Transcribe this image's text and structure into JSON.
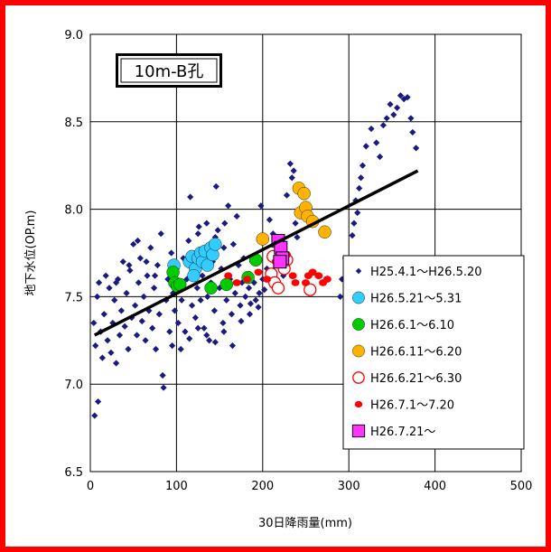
{
  "chart_data": {
    "type": "scatter",
    "title": "10m-B孔",
    "xlabel": "30日降雨量(mm)",
    "ylabel": "地下水位(OP.m)",
    "xlim": [
      0,
      500
    ],
    "ylim": [
      6.5,
      9.0
    ],
    "xticks": [
      "0",
      "100",
      "200",
      "300",
      "400",
      "500"
    ],
    "yticks": [
      "6.5",
      "7.0",
      "7.5",
      "8.0",
      "8.5",
      "9.0"
    ],
    "grid": true,
    "legend_position": "bottom-right",
    "trendline": {
      "x": [
        5,
        380
      ],
      "y": [
        7.28,
        8.22
      ],
      "color": "#000000"
    },
    "series": [
      {
        "name": "H25.4.1～H26.5.20",
        "marker": "diamond",
        "color": "#1a1a80",
        "points": [
          [
            5,
            6.82
          ],
          [
            9,
            6.9
          ],
          [
            4,
            7.35
          ],
          [
            6,
            7.22
          ],
          [
            8,
            7.5
          ],
          [
            10,
            7.58
          ],
          [
            12,
            7.3
          ],
          [
            14,
            7.15
          ],
          [
            16,
            7.4
          ],
          [
            18,
            7.62
          ],
          [
            20,
            7.25
          ],
          [
            22,
            7.55
          ],
          [
            24,
            7.18
          ],
          [
            26,
            7.35
          ],
          [
            28,
            7.48
          ],
          [
            30,
            7.12
          ],
          [
            32,
            7.6
          ],
          [
            34,
            7.28
          ],
          [
            36,
            7.42
          ],
          [
            38,
            7.7
          ],
          [
            40,
            7.33
          ],
          [
            42,
            7.52
          ],
          [
            44,
            7.2
          ],
          [
            46,
            7.65
          ],
          [
            48,
            7.38
          ],
          [
            50,
            7.8
          ],
          [
            52,
            7.45
          ],
          [
            54,
            7.28
          ],
          [
            56,
            7.58
          ],
          [
            58,
            7.72
          ],
          [
            60,
            7.36
          ],
          [
            62,
            7.5
          ],
          [
            64,
            7.25
          ],
          [
            66,
            7.62
          ],
          [
            68,
            7.42
          ],
          [
            70,
            7.78
          ],
          [
            72,
            7.32
          ],
          [
            74,
            7.55
          ],
          [
            76,
            7.2
          ],
          [
            78,
            7.68
          ],
          [
            80,
            7.4
          ],
          [
            82,
            7.86
          ],
          [
            84,
            7.05
          ],
          [
            85,
            6.98
          ],
          [
            88,
            7.48
          ],
          [
            90,
            7.6
          ],
          [
            92,
            7.3
          ],
          [
            94,
            7.75
          ],
          [
            96,
            7.52
          ],
          [
            98,
            7.42
          ],
          [
            100,
            7.66
          ],
          [
            102,
            7.35
          ],
          [
            104,
            7.55
          ],
          [
            106,
            7.48
          ],
          [
            108,
            7.72
          ],
          [
            110,
            7.3
          ],
          [
            112,
            7.6
          ],
          [
            114,
            7.82
          ],
          [
            116,
            8.07
          ],
          [
            118,
            7.45
          ],
          [
            120,
            7.68
          ],
          [
            122,
            7.38
          ],
          [
            124,
            7.55
          ],
          [
            126,
            7.9
          ],
          [
            128,
            7.48
          ],
          [
            130,
            7.62
          ],
          [
            132,
            7.32
          ],
          [
            134,
            7.76
          ],
          [
            136,
            7.5
          ],
          [
            138,
            7.25
          ],
          [
            140,
            7.58
          ],
          [
            142,
            7.7
          ],
          [
            144,
            7.42
          ],
          [
            146,
            8.13
          ],
          [
            148,
            7.88
          ],
          [
            150,
            7.55
          ],
          [
            152,
            7.66
          ],
          [
            154,
            7.35
          ],
          [
            156,
            7.92
          ],
          [
            158,
            7.48
          ],
          [
            160,
            8.02
          ],
          [
            162,
            7.6
          ],
          [
            164,
            7.4
          ],
          [
            166,
            7.8
          ],
          [
            168,
            7.52
          ],
          [
            170,
            7.96
          ],
          [
            172,
            7.68
          ],
          [
            174,
            7.45
          ],
          [
            176,
            7.58
          ],
          [
            178,
            7.72
          ],
          [
            180,
            7.5
          ],
          [
            182,
            7.62
          ],
          [
            184,
            7.55
          ],
          [
            186,
            7.46
          ],
          [
            188,
            7.7
          ],
          [
            190,
            7.58
          ],
          [
            192,
            7.48
          ],
          [
            194,
            7.64
          ],
          [
            196,
            7.52
          ],
          [
            198,
            8.02
          ],
          [
            200,
            7.6
          ],
          [
            202,
            7.54
          ],
          [
            205,
            7.66
          ],
          [
            208,
            7.94
          ],
          [
            212,
            7.86
          ],
          [
            216,
            7.6
          ],
          [
            220,
            7.7
          ],
          [
            224,
            7.62
          ],
          [
            228,
            8.08
          ],
          [
            232,
            8.26
          ],
          [
            234,
            8.18
          ],
          [
            236,
            8.22
          ],
          [
            238,
            7.92
          ],
          [
            240,
            7.84
          ],
          [
            290,
            7.5
          ],
          [
            292,
            7.6
          ],
          [
            296,
            7.72
          ],
          [
            300,
            7.62
          ],
          [
            304,
            7.85
          ],
          [
            306,
            7.92
          ],
          [
            308,
            8.05
          ],
          [
            310,
            7.98
          ],
          [
            312,
            8.12
          ],
          [
            314,
            8.18
          ],
          [
            316,
            8.25
          ],
          [
            320,
            8.36
          ],
          [
            326,
            8.46
          ],
          [
            332,
            8.38
          ],
          [
            336,
            8.3
          ],
          [
            340,
            8.48
          ],
          [
            344,
            8.52
          ],
          [
            348,
            8.6
          ],
          [
            352,
            8.54
          ],
          [
            356,
            8.58
          ],
          [
            360,
            8.65
          ],
          [
            364,
            8.63
          ],
          [
            368,
            8.64
          ],
          [
            372,
            8.52
          ],
          [
            374,
            8.44
          ],
          [
            378,
            8.35
          ],
          [
            30,
            7.58
          ],
          [
            45,
            7.68
          ],
          [
            55,
            7.82
          ],
          [
            65,
            7.7
          ],
          [
            75,
            7.62
          ],
          [
            95,
            7.22
          ],
          [
            105,
            7.2
          ],
          [
            115,
            7.26
          ],
          [
            125,
            7.32
          ],
          [
            135,
            7.28
          ],
          [
            145,
            7.24
          ],
          [
            155,
            7.3
          ],
          [
            165,
            7.22
          ],
          [
            175,
            7.36
          ],
          [
            185,
            7.4
          ],
          [
            195,
            7.44
          ],
          [
            125,
            7.86
          ],
          [
            135,
            7.92
          ],
          [
            145,
            7.84
          ],
          [
            155,
            7.78
          ]
        ]
      },
      {
        "name": "H26.5.21～5.31",
        "marker": "circle",
        "color": "#33ccff",
        "points": [
          [
            97,
            7.68
          ],
          [
            115,
            7.7
          ],
          [
            118,
            7.73
          ],
          [
            122,
            7.66
          ],
          [
            125,
            7.72
          ],
          [
            128,
            7.75
          ],
          [
            130,
            7.7
          ],
          [
            133,
            7.76
          ],
          [
            136,
            7.68
          ],
          [
            140,
            7.78
          ],
          [
            142,
            7.74
          ],
          [
            145,
            7.8
          ],
          [
            120,
            7.62
          ]
        ]
      },
      {
        "name": "H26.6.1～6.10",
        "marker": "circle",
        "color": "#00cc00",
        "points": [
          [
            96,
            7.64
          ],
          [
            98,
            7.58
          ],
          [
            101,
            7.56
          ],
          [
            104,
            7.57
          ],
          [
            140,
            7.55
          ],
          [
            158,
            7.57
          ],
          [
            183,
            7.61
          ],
          [
            192,
            7.71
          ]
        ]
      },
      {
        "name": "H26.6.11～6.20",
        "marker": "circle",
        "color": "#ffb300",
        "points": [
          [
            200,
            7.83
          ],
          [
            242,
            8.12
          ],
          [
            248,
            8.09
          ],
          [
            244,
            7.98
          ],
          [
            250,
            8.01
          ],
          [
            252,
            7.96
          ],
          [
            258,
            7.93
          ],
          [
            272,
            7.87
          ]
        ]
      },
      {
        "name": "H26.6.21～6.30",
        "marker": "open-circle",
        "color": "#ff0000",
        "points": [
          [
            210,
            7.63
          ],
          [
            212,
            7.73
          ],
          [
            214,
            7.58
          ],
          [
            218,
            7.55
          ],
          [
            220,
            7.7
          ],
          [
            225,
            7.66
          ],
          [
            228,
            7.71
          ],
          [
            255,
            7.54
          ]
        ]
      },
      {
        "name": "H26.7.1～7.20",
        "marker": "dot",
        "color": "#ff0000",
        "points": [
          [
            160,
            7.62
          ],
          [
            170,
            7.58
          ],
          [
            182,
            7.6
          ],
          [
            195,
            7.64
          ],
          [
            205,
            7.6
          ],
          [
            215,
            7.7
          ],
          [
            228,
            7.74
          ],
          [
            235,
            7.62
          ],
          [
            238,
            7.58
          ],
          [
            250,
            7.58
          ],
          [
            253,
            7.62
          ],
          [
            258,
            7.64
          ],
          [
            265,
            7.62
          ],
          [
            270,
            7.58
          ],
          [
            275,
            7.6
          ]
        ]
      },
      {
        "name": "H26.7.21～",
        "marker": "square",
        "color": "#ff33ff",
        "points": [
          [
            218,
            7.82
          ],
          [
            221,
            7.78
          ],
          [
            223,
            7.72
          ],
          [
            220,
            7.7
          ]
        ]
      }
    ]
  }
}
